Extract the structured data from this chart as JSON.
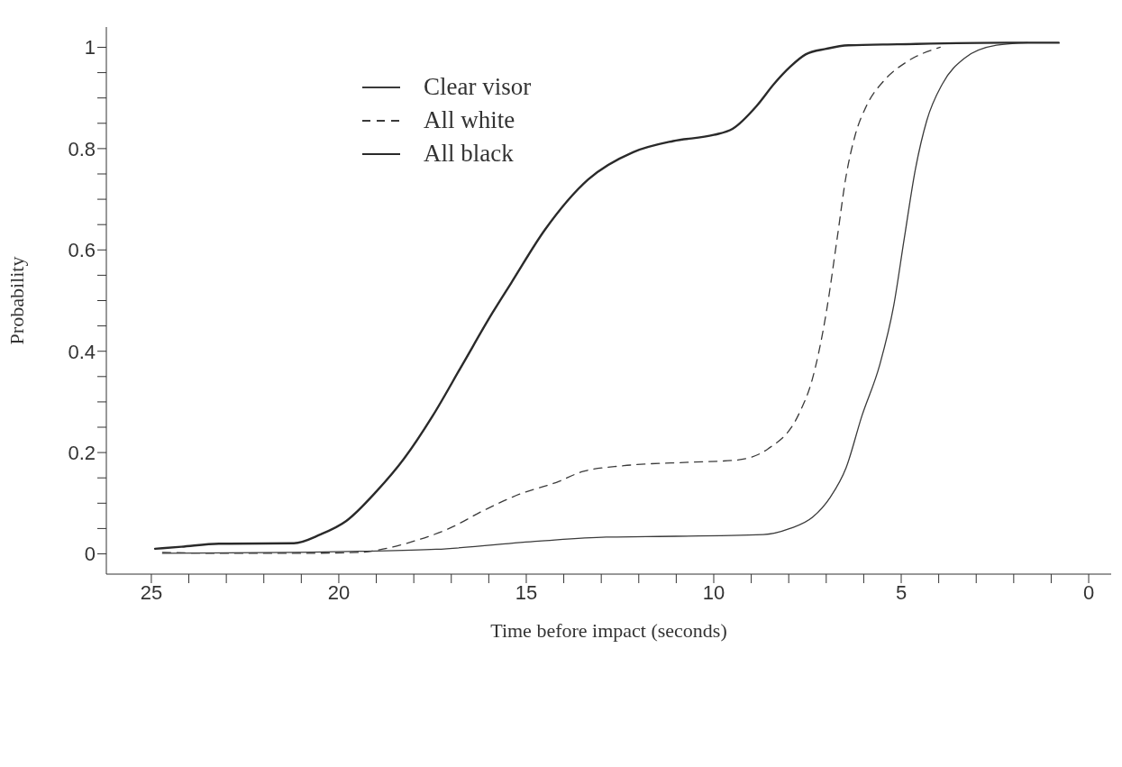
{
  "chart_data": {
    "type": "line",
    "xlabel": "Time before impact  (seconds)",
    "ylabel": "Probability",
    "xlim": [
      26.2,
      -0.6
    ],
    "ylim": [
      -0.04,
      1.04
    ],
    "xticks": [
      {
        "value": 25,
        "label": "25"
      },
      {
        "value": 24,
        "label": null
      },
      {
        "value": 23,
        "label": null
      },
      {
        "value": 22,
        "label": null
      },
      {
        "value": 21,
        "label": null
      },
      {
        "value": 20,
        "label": "20"
      },
      {
        "value": 19,
        "label": null
      },
      {
        "value": 18,
        "label": null
      },
      {
        "value": 17,
        "label": null
      },
      {
        "value": 16,
        "label": null
      },
      {
        "value": 15,
        "label": "15"
      },
      {
        "value": 14,
        "label": null
      },
      {
        "value": 13,
        "label": null
      },
      {
        "value": 12,
        "label": null
      },
      {
        "value": 11,
        "label": null
      },
      {
        "value": 10,
        "label": "10"
      },
      {
        "value": 9,
        "label": null
      },
      {
        "value": 8,
        "label": null
      },
      {
        "value": 7,
        "label": null
      },
      {
        "value": 6,
        "label": null
      },
      {
        "value": 5,
        "label": "5"
      },
      {
        "value": 4,
        "label": null
      },
      {
        "value": 3,
        "label": null
      },
      {
        "value": 2,
        "label": null
      },
      {
        "value": 1,
        "label": null
      },
      {
        "value": 0,
        "label": "0"
      }
    ],
    "yticks": [
      0,
      {
        "value": 0.05,
        "label": null
      },
      {
        "value": 0.1,
        "label": null
      },
      {
        "value": 0.15,
        "label": null
      },
      0.2,
      {
        "value": 0.25,
        "label": null
      },
      {
        "value": 0.3,
        "label": null
      },
      {
        "value": 0.35,
        "label": null
      },
      0.4,
      {
        "value": 0.45,
        "label": null
      },
      {
        "value": 0.5,
        "label": null
      },
      {
        "value": 0.55,
        "label": null
      },
      0.6,
      {
        "value": 0.65,
        "label": null
      },
      {
        "value": 0.7,
        "label": null
      },
      {
        "value": 0.75,
        "label": null
      },
      0.8,
      {
        "value": 0.85,
        "label": null
      },
      {
        "value": 0.9,
        "label": null
      },
      {
        "value": 0.95,
        "label": null
      },
      1
    ],
    "grid": false,
    "legend": "top left",
    "marker": "none",
    "series": [
      {
        "name": "Clear visor",
        "color": "#3a3a3a",
        "line_style": "solid",
        "x": [
          24.7,
          21.2,
          19.45,
          17.4,
          14.67,
          12.87,
          11.8,
          8.68,
          7.97,
          7.37,
          6.89,
          6.47,
          6.05,
          5.57,
          5.2,
          4.92,
          4.62,
          4.32,
          3.9,
          3.3,
          2.46,
          1.63
        ],
        "values": [
          0.001,
          0.003,
          0.005,
          0.009,
          0.025,
          0.033,
          0.034,
          0.038,
          0.05,
          0.072,
          0.112,
          0.17,
          0.272,
          0.374,
          0.49,
          0.622,
          0.76,
          0.855,
          0.928,
          0.979,
          1.004,
          1.009
        ]
      },
      {
        "name": "All white",
        "color": "#3a3a3a",
        "line_style": "dashed",
        "x": [
          24.7,
          23.0,
          21.2,
          19.45,
          18.85,
          18.0,
          17.06,
          16.1,
          15.14,
          14.2,
          13.47,
          12.4,
          10.6,
          9.4,
          8.56,
          7.73,
          7.37,
          7.0,
          6.71,
          6.47,
          6.23,
          5.93,
          5.45,
          4.86,
          3.96
        ],
        "values": [
          0.003,
          0.001,
          0.001,
          0.003,
          0.009,
          0.025,
          0.05,
          0.087,
          0.119,
          0.141,
          0.163,
          0.174,
          0.181,
          0.185,
          0.207,
          0.276,
          0.345,
          0.476,
          0.622,
          0.746,
          0.826,
          0.884,
          0.935,
          0.971,
          1.0
        ]
      },
      {
        "name": "All black",
        "color": "#2a2a2a",
        "line_style": "solid",
        "x": [
          24.9,
          24.2,
          23.2,
          21.2,
          20.5,
          19.8,
          19.0,
          18.25,
          17.5,
          16.7,
          15.9,
          15.4,
          14.5,
          13.35,
          12.15,
          11.08,
          10.0,
          9.5,
          8.86,
          8.39,
          7.97,
          7.55,
          7.0,
          6.41,
          5.1,
          2.2,
          0.8
        ],
        "values": [
          0.01,
          0.014,
          0.02,
          0.021,
          0.038,
          0.065,
          0.123,
          0.189,
          0.272,
          0.374,
          0.476,
          0.535,
          0.64,
          0.739,
          0.793,
          0.815,
          0.827,
          0.839,
          0.884,
          0.928,
          0.961,
          0.986,
          0.997,
          1.004,
          1.006,
          1.009,
          1.009
        ]
      }
    ]
  }
}
